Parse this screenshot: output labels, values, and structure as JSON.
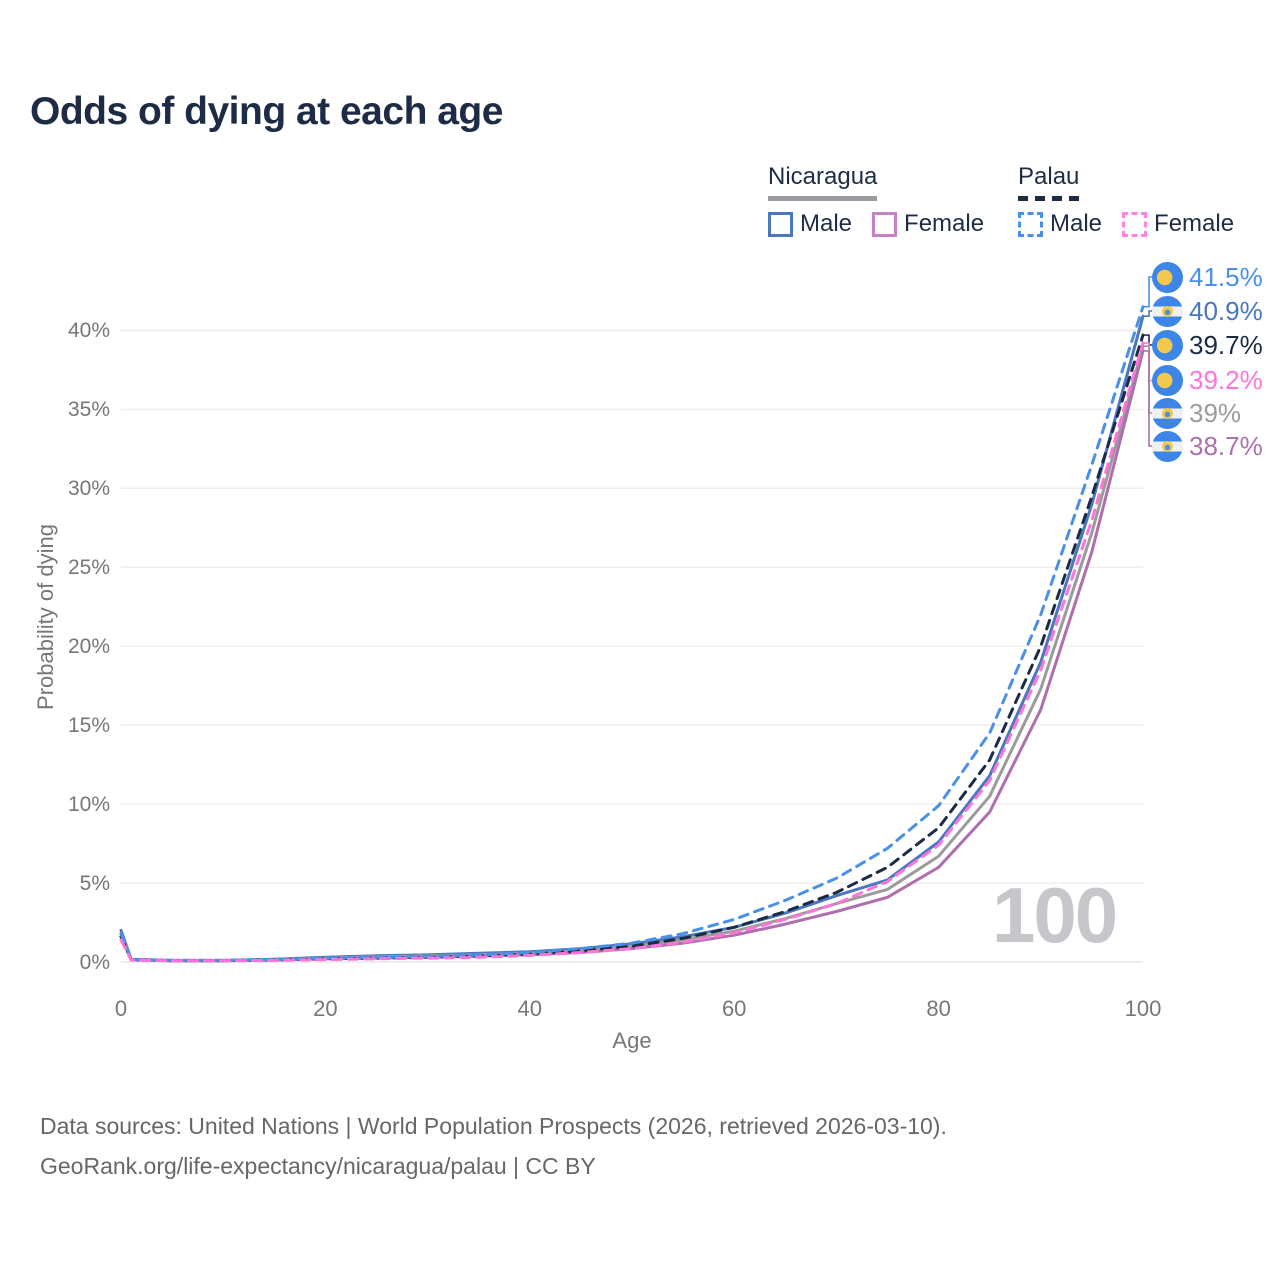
{
  "title": "Odds of dying at each age",
  "legend": {
    "groups": [
      {
        "name": "Nicaragua",
        "underline_style": "solid",
        "underline_color": "#9b9ba0",
        "items": [
          {
            "label": "Male",
            "color": "#4a77bd",
            "dash": false
          },
          {
            "label": "Female",
            "color": "#c583c1",
            "dash": false
          }
        ]
      },
      {
        "name": "Palau",
        "underline_style": "dashed",
        "underline_color": "#1e2d45",
        "items": [
          {
            "label": "Male",
            "color": "#4a90e8",
            "dash": true
          },
          {
            "label": "Female",
            "color": "#ff85dd",
            "dash": true
          }
        ]
      }
    ]
  },
  "watermark": "100",
  "footer": {
    "line1": "Data sources: United Nations | World Population Prospects (2026, retrieved 2026-03-10).",
    "line2": "GeoRank.org/life-expectancy/nicaragua/palau | CC BY"
  },
  "chart_data": {
    "type": "line",
    "xlabel": "Age",
    "ylabel": "Probability of dying",
    "xlim": [
      0,
      100
    ],
    "ylim": [
      0,
      43
    ],
    "grid": true,
    "x_ticks": [
      0,
      20,
      40,
      60,
      80,
      100
    ],
    "y_ticks": [
      {
        "value": 0,
        "label": "0%"
      },
      {
        "value": 5,
        "label": "5%"
      },
      {
        "value": 10,
        "label": "10%"
      },
      {
        "value": 15,
        "label": "15%"
      },
      {
        "value": 20,
        "label": "20%"
      },
      {
        "value": 25,
        "label": "25%"
      },
      {
        "value": 30,
        "label": "30%"
      },
      {
        "value": 35,
        "label": "35%"
      },
      {
        "value": 40,
        "label": "40%"
      }
    ],
    "ages": [
      0,
      1,
      5,
      10,
      15,
      20,
      25,
      30,
      35,
      40,
      45,
      50,
      55,
      60,
      65,
      70,
      75,
      80,
      85,
      90,
      95,
      100
    ],
    "series": [
      {
        "name": "Nicaragua Male",
        "country": "nicaragua",
        "color": "#4a77bd",
        "dash": false,
        "end_label": "40.9%",
        "values": [
          2.0,
          0.18,
          0.1,
          0.1,
          0.18,
          0.3,
          0.4,
          0.45,
          0.55,
          0.65,
          0.85,
          1.15,
          1.6,
          2.2,
          3.1,
          4.2,
          5.2,
          7.6,
          11.8,
          19.0,
          29.0,
          40.9
        ]
      },
      {
        "name": "Nicaragua",
        "country": "nicaragua",
        "color": "#9b9b9b",
        "dash": false,
        "end_label": "39%",
        "values": [
          1.8,
          0.16,
          0.09,
          0.09,
          0.15,
          0.25,
          0.33,
          0.38,
          0.46,
          0.55,
          0.72,
          1.0,
          1.4,
          1.95,
          2.75,
          3.7,
          4.6,
          6.7,
          10.5,
          17.3,
          27.2,
          39.0
        ]
      },
      {
        "name": "Nicaragua Female",
        "country": "nicaragua",
        "color": "#ad6fad",
        "dash": false,
        "end_label": "38.7%",
        "values": [
          1.6,
          0.14,
          0.08,
          0.08,
          0.12,
          0.2,
          0.25,
          0.3,
          0.38,
          0.46,
          0.6,
          0.85,
          1.2,
          1.7,
          2.4,
          3.2,
          4.1,
          6.0,
          9.5,
          16.0,
          26.0,
          38.7
        ]
      },
      {
        "name": "Palau",
        "country": "palau",
        "color": "#1c2b45",
        "dash": true,
        "end_label": "39.7%",
        "values": [
          1.6,
          0.13,
          0.09,
          0.09,
          0.13,
          0.2,
          0.25,
          0.3,
          0.38,
          0.5,
          0.7,
          1.0,
          1.5,
          2.2,
          3.2,
          4.4,
          6.0,
          8.5,
          12.8,
          20.0,
          29.5,
          39.7
        ]
      },
      {
        "name": "Palau Male",
        "country": "palau",
        "color": "#4a90e8",
        "dash": true,
        "end_label": "41.5%",
        "values": [
          1.8,
          0.15,
          0.1,
          0.1,
          0.15,
          0.25,
          0.3,
          0.35,
          0.45,
          0.6,
          0.85,
          1.2,
          1.8,
          2.7,
          3.9,
          5.3,
          7.2,
          9.9,
          14.5,
          22.0,
          31.5,
          41.5
        ]
      },
      {
        "name": "Palau Female",
        "country": "palau",
        "color": "#ff74d8",
        "dash": true,
        "end_label": "39.2%",
        "values": [
          1.4,
          0.12,
          0.08,
          0.08,
          0.1,
          0.15,
          0.2,
          0.25,
          0.3,
          0.42,
          0.6,
          0.85,
          1.25,
          1.85,
          2.7,
          3.7,
          5.1,
          7.4,
          11.5,
          18.5,
          28.0,
          39.2
        ]
      }
    ],
    "end_label_order": [
      "Palau Male",
      "Nicaragua Male",
      "Palau",
      "Palau Female",
      "Nicaragua",
      "Nicaragua Female"
    ]
  }
}
